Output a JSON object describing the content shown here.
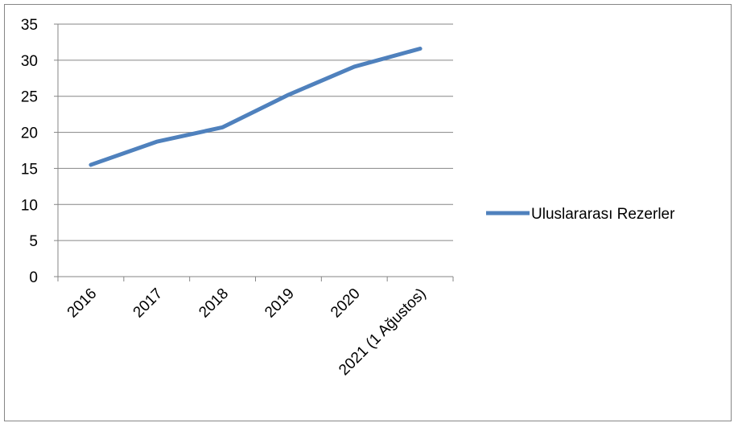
{
  "chart_data": {
    "type": "line",
    "categories": [
      "2016",
      "2017",
      "2018",
      "2019",
      "2020",
      "2021 (1 Ağustos)"
    ],
    "series": [
      {
        "name": "Uluslararası Rezerler",
        "values": [
          15.5,
          18.7,
          20.7,
          25.2,
          29.1,
          31.6
        ],
        "color": "#4F81BD"
      }
    ],
    "ylim": [
      0,
      35
    ],
    "yticks": [
      0,
      5,
      10,
      15,
      20,
      25,
      30,
      35
    ],
    "grid": true,
    "legend": "right"
  }
}
